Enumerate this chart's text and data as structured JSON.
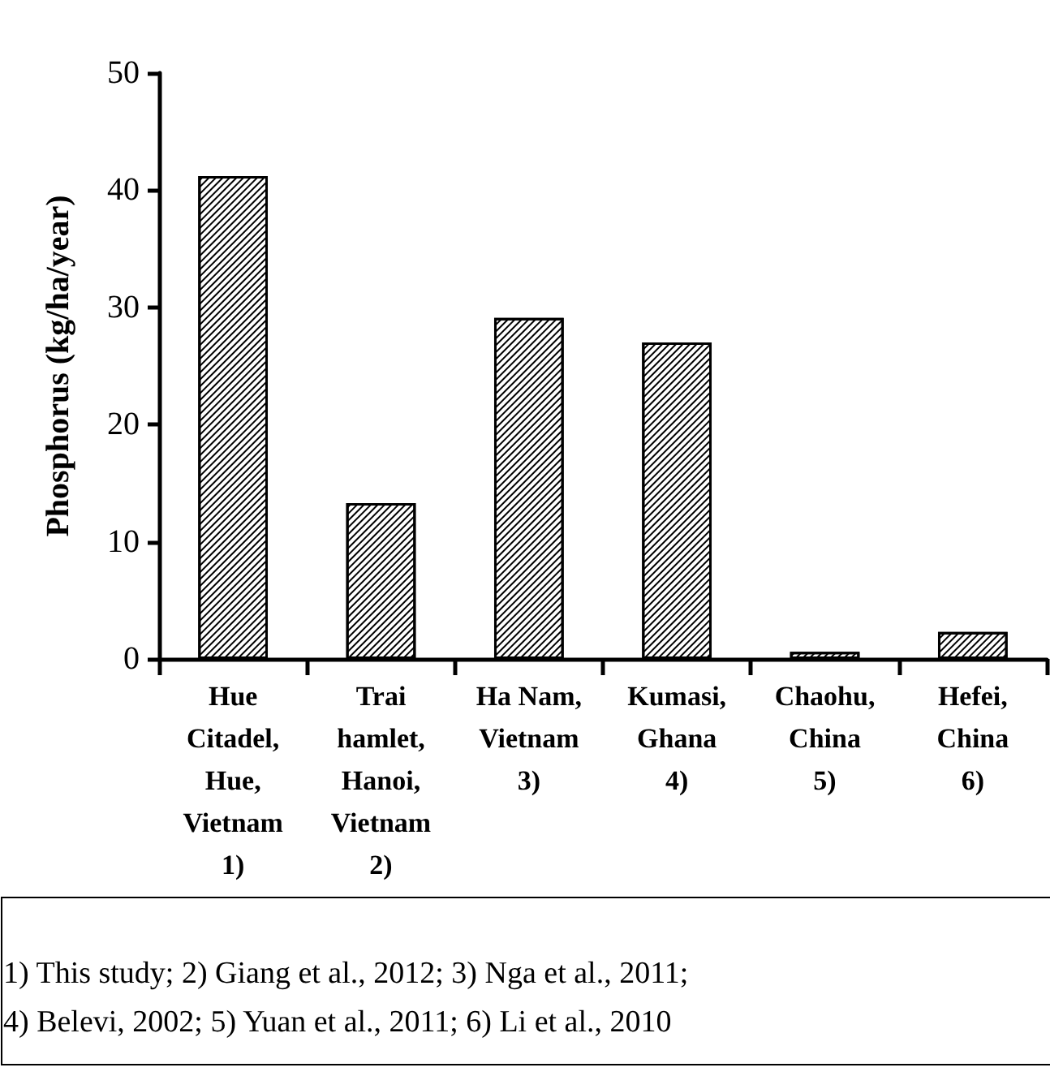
{
  "chart_data": {
    "type": "bar",
    "ylabel": "Phosphorus (kg/ha/year)",
    "categories": [
      "Hue\nCitadel,\nHue,\nVietnam\n1)",
      "Trai\nhamlet,\nHanoi,\nVietnam\n2)",
      "Ha Nam,\nVietnam\n3)",
      "Kumasi,\nGhana\n4)",
      "Chaohu,\nChina\n5)",
      "Hefei,\nChina\n6)"
    ],
    "values": [
      41.2,
      13.3,
      29.1,
      27.0,
      0.6,
      2.3
    ],
    "color": "#ffffff",
    "ylim": [
      0,
      50
    ],
    "yticks": [
      0,
      10,
      20,
      30,
      40,
      50
    ],
    "annotations": [
      "1) This study; 2) Giang et al., 2012; 3) Nga et al., 2011;\n4) Belevi, 2002; 5) Yuan et al., 2011; 6) Li et al., 2010"
    ]
  }
}
